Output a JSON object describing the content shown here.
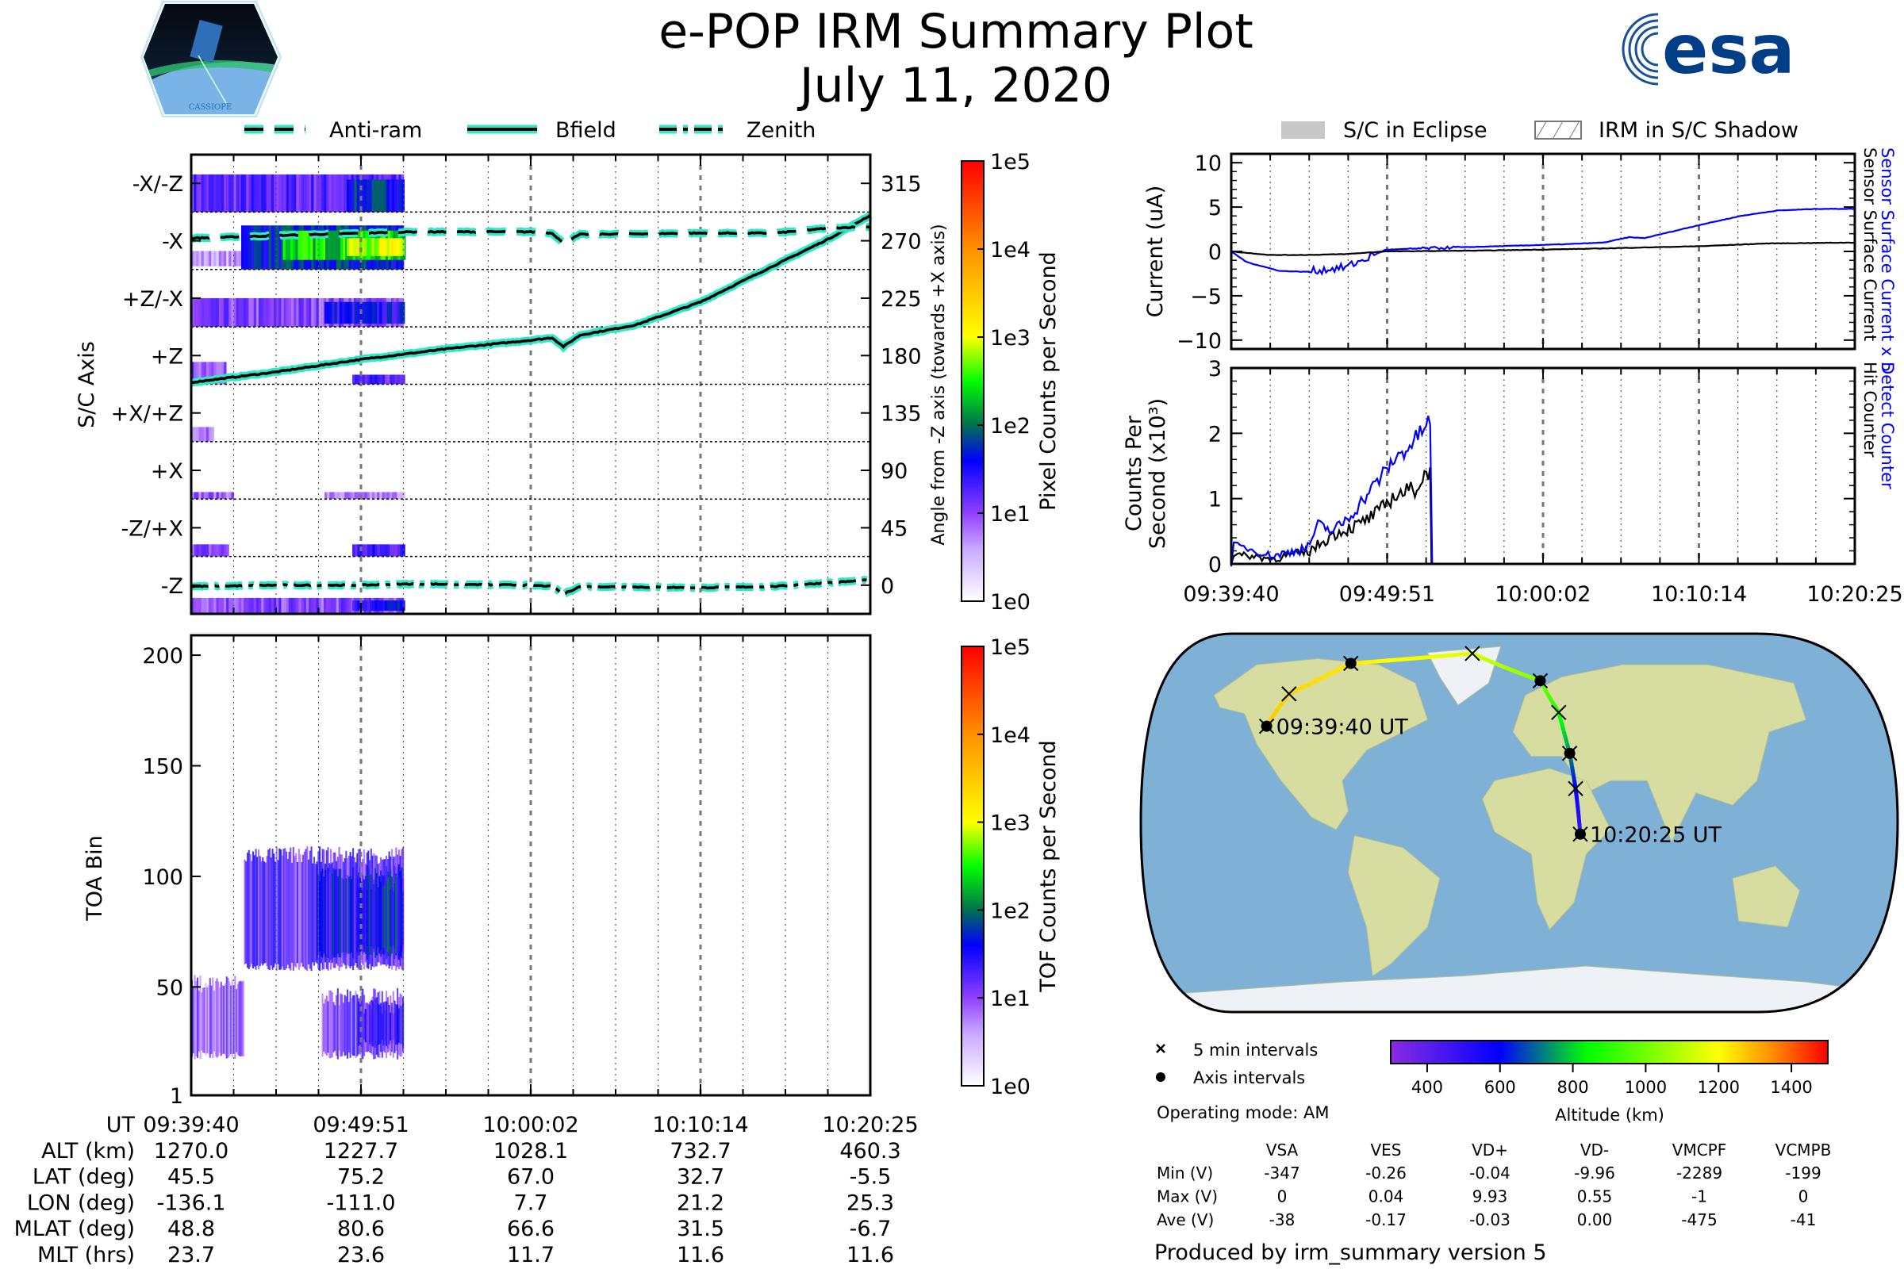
{
  "header": {
    "title": "e-POP IRM Summary Plot",
    "date": "July 11, 2020",
    "left_logo_text": "CASSIOPE",
    "right_logo_text": "esa"
  },
  "legend_left": {
    "antiram": "Anti-ram",
    "bfield": "Bfield",
    "zenith": "Zenith"
  },
  "legend_right": {
    "eclipse": "S/C in Eclipse",
    "shadow": "IRM in S/C Shadow"
  },
  "time_axis": {
    "labels": [
      "09:39:40",
      "09:49:51",
      "10:00:02",
      "10:10:14",
      "10:20:25"
    ],
    "seconds": [
      0,
      611,
      1222,
      1834,
      2445
    ],
    "range_s": [
      0,
      2445
    ],
    "minor_divisions": 16
  },
  "chart_data": [
    {
      "id": "pixel",
      "type": "heatmap",
      "ylabel": "S/C Axis",
      "y2label": "Angle from -Z axis (towards +X axis)",
      "categories": [
        "-X/-Z",
        "-X",
        "+Z/-X",
        "+Z",
        "+X/+Z",
        "+X",
        "-Z/+X",
        "-Z"
      ],
      "category_angles": [
        315,
        270,
        225,
        180,
        135,
        90,
        45,
        0
      ],
      "y2ticks": [
        "315",
        "270",
        "225",
        "180",
        "135",
        "90",
        "45",
        "0"
      ],
      "ylim": [
        -22.5,
        337.5
      ],
      "colorbar": {
        "label": "Pixel Counts per Second",
        "ticks": [
          "1e0",
          "1e1",
          "1e2",
          "1e3",
          "1e4",
          "1e5"
        ]
      },
      "blocks_log10": [
        {
          "a": [
            292.5,
            322
          ],
          "t": [
            0,
            765
          ],
          "v": 1.2
        },
        {
          "a": [
            292.5,
            318
          ],
          "t": [
            560,
            765
          ],
          "v": 1.7
        },
        {
          "a": [
            250,
            262
          ],
          "t": [
            0,
            180
          ],
          "v": 0.6
        },
        {
          "a": [
            247.5,
            282
          ],
          "t": [
            180,
            765
          ],
          "v": 1.7
        },
        {
          "a": [
            255,
            278
          ],
          "t": [
            330,
            765
          ],
          "v": 2.4
        },
        {
          "a": [
            258,
            272
          ],
          "t": [
            560,
            765
          ],
          "v": 2.9
        },
        {
          "a": [
            202.5,
            225
          ],
          "t": [
            0,
            765
          ],
          "v": 1.0
        },
        {
          "a": [
            205,
            222
          ],
          "t": [
            480,
            765
          ],
          "v": 1.5
        },
        {
          "a": [
            157.5,
            175
          ],
          "t": [
            0,
            120
          ],
          "v": 1.0
        },
        {
          "a": [
            157.5,
            165
          ],
          "t": [
            580,
            765
          ],
          "v": 1.2
        },
        {
          "a": [
            112.5,
            124
          ],
          "t": [
            0,
            80
          ],
          "v": 0.9
        },
        {
          "a": [
            67.5,
            73
          ],
          "t": [
            0,
            150
          ],
          "v": 0.9
        },
        {
          "a": [
            67.5,
            73
          ],
          "t": [
            480,
            765
          ],
          "v": 0.7
        },
        {
          "a": [
            22.5,
            32
          ],
          "t": [
            0,
            130
          ],
          "v": 1.0
        },
        {
          "a": [
            22.5,
            32
          ],
          "t": [
            580,
            765
          ],
          "v": 1.3
        },
        {
          "a": [
            -22.5,
            -10
          ],
          "t": [
            0,
            765
          ],
          "v": 1.0
        },
        {
          "a": [
            -20,
            -12
          ],
          "t": [
            580,
            765
          ],
          "v": 1.5
        }
      ],
      "series": [
        {
          "name": "Bfield",
          "t": [
            0,
            300,
            611,
            800,
            950,
            1222,
            1300,
            1340,
            1400,
            1600,
            1834,
            2000,
            2150,
            2300,
            2445
          ],
          "deg": [
            159,
            167,
            177,
            182,
            186,
            192,
            194,
            187,
            196,
            204,
            222,
            240,
            256,
            272,
            290
          ]
        },
        {
          "name": "Anti-ram",
          "t": [
            0,
            300,
            611,
            800,
            1222,
            1300,
            1340,
            1400,
            1834,
            2100,
            2300,
            2445
          ],
          "deg": [
            272,
            274,
            276,
            277,
            277,
            276,
            268,
            275,
            276,
            276,
            280,
            281
          ]
        },
        {
          "name": "Zenith",
          "t": [
            0,
            300,
            611,
            800,
            1222,
            1300,
            1340,
            1400,
            1834,
            2100,
            2300,
            2445
          ],
          "deg": [
            -1,
            0,
            0,
            1,
            0,
            -1,
            -7,
            -1,
            -2,
            -1,
            2,
            4
          ]
        }
      ]
    },
    {
      "id": "tof",
      "type": "heatmap",
      "ylabel": "TOA Bin",
      "yticks": [
        "1",
        "50",
        "100",
        "150",
        "200"
      ],
      "ylim": [
        1,
        209
      ],
      "colorbar": {
        "label": "TOF Counts per Second",
        "ticks": [
          "1e0",
          "1e1",
          "1e2",
          "1e3",
          "1e4",
          "1e5"
        ]
      },
      "blocks_log10": [
        {
          "toa": [
            20,
            50
          ],
          "t": [
            0,
            190
          ],
          "v": 0.9
        },
        {
          "toa": [
            60,
            108
          ],
          "t": [
            190,
            765
          ],
          "v": 1.2
        },
        {
          "toa": [
            65,
            100
          ],
          "t": [
            450,
            765
          ],
          "v": 1.5
        },
        {
          "toa": [
            68,
            95
          ],
          "t": [
            600,
            765
          ],
          "v": 1.7
        },
        {
          "toa": [
            20,
            44
          ],
          "t": [
            470,
            765
          ],
          "v": 1.1
        },
        {
          "toa": [
            25,
            40
          ],
          "t": [
            600,
            765
          ],
          "v": 1.4
        }
      ]
    },
    {
      "id": "current",
      "type": "line",
      "ylabel": "Current (uA)",
      "ylim": [
        -11,
        11
      ],
      "yticks": [
        "10",
        "5",
        "0",
        "−5",
        "−10"
      ],
      "ytick_values": [
        10,
        5,
        0,
        -5,
        -10
      ],
      "right_labels": {
        "blue": "Sensor Surface Current x 5",
        "black": "Sensor Surface Current"
      },
      "series": [
        {
          "name": "Sensor Surface Current x 5",
          "color": "#0000ff",
          "t": [
            0,
            60,
            190,
            290,
            380,
            447,
            530,
            606,
            944,
            1300,
            1461,
            1560,
            1620,
            1839,
            1998,
            2137,
            2296,
            2445
          ],
          "y": [
            0,
            -1.2,
            -2.2,
            -2.3,
            -2.0,
            -1.8,
            -0.8,
            0.2,
            0.5,
            0.8,
            1.0,
            1.6,
            1.5,
            3.0,
            4.0,
            4.6,
            4.8,
            4.8
          ]
        },
        {
          "name": "Sensor Surface Current",
          "color": "#000000",
          "t": [
            0,
            150,
            300,
            450,
            600,
            1000,
            1400,
            1850,
            2100,
            2445
          ],
          "y": [
            0,
            -0.4,
            -0.4,
            -0.3,
            0,
            0.1,
            0.3,
            0.6,
            0.9,
            1.0
          ]
        }
      ]
    },
    {
      "id": "counts",
      "type": "line",
      "ylabel": [
        "Counts Per",
        "Second (x10³)"
      ],
      "ylim": [
        0,
        3
      ],
      "yticks": [
        "3",
        "2",
        "1",
        "0"
      ],
      "ytick_values": [
        3,
        2,
        1,
        0
      ],
      "right_labels": {
        "blue": "Detect Counter",
        "black": "Hit Counter"
      },
      "series": [
        {
          "name": "Hit Counter",
          "color": "#000000",
          "t": [
            0,
            10,
            160,
            300,
            400,
            500,
            580,
            640,
            720,
            780,
            785,
            2445
          ],
          "y": [
            0,
            0.15,
            0.08,
            0.18,
            0.45,
            0.6,
            0.8,
            1.05,
            1.15,
            1.45,
            0,
            0
          ]
        },
        {
          "name": "Detect Counter",
          "color": "#0000ff",
          "t": [
            0,
            10,
            160,
            300,
            340,
            400,
            470,
            580,
            640,
            700,
            780,
            788,
            2445
          ],
          "y": [
            0,
            0.3,
            0.12,
            0.25,
            0.6,
            0.5,
            0.75,
            1.3,
            1.6,
            1.8,
            2.2,
            0,
            0
          ]
        }
      ]
    }
  ],
  "ephemeris": {
    "rows": [
      {
        "label": "UT",
        "values": [
          "09:39:40",
          "09:49:51",
          "10:00:02",
          "10:10:14",
          "10:20:25"
        ]
      },
      {
        "label": "ALT (km)",
        "values": [
          "1270.0",
          "1227.7",
          "1028.1",
          "732.7",
          "460.3"
        ]
      },
      {
        "label": "LAT (deg)",
        "values": [
          "45.5",
          "75.2",
          "67.0",
          "32.7",
          "-5.5"
        ]
      },
      {
        "label": "LON (deg)",
        "values": [
          "-136.1",
          "-111.0",
          "7.7",
          "21.2",
          "25.3"
        ]
      },
      {
        "label": "MLAT (deg)",
        "values": [
          "48.8",
          "80.6",
          "66.6",
          "31.5",
          "-6.7"
        ]
      },
      {
        "label": "MLT (hrs)",
        "values": [
          "23.7",
          "23.6",
          "11.7",
          "11.6",
          "11.6"
        ]
      }
    ]
  },
  "map": {
    "start_label": "09:39:40 UT",
    "end_label": "10:20:25 UT",
    "track": [
      {
        "lon": -136.1,
        "lat": 45.5,
        "alt": 1270,
        "x5": true,
        "axis": true
      },
      {
        "lon": -134.8,
        "lat": 60.8,
        "alt": 1255,
        "x5": true,
        "axis": false
      },
      {
        "lon": -111.0,
        "lat": 75.2,
        "alt": 1228,
        "x5": true,
        "axis": true
      },
      {
        "lon": -36.0,
        "lat": 79.9,
        "alt": 1150,
        "x5": true,
        "axis": false
      },
      {
        "lon": 7.7,
        "lat": 67.0,
        "alt": 1028,
        "x5": true,
        "axis": true
      },
      {
        "lon": 17.0,
        "lat": 52.0,
        "alt": 880,
        "x5": true,
        "axis": false
      },
      {
        "lon": 21.2,
        "lat": 32.7,
        "alt": 733,
        "x5": true,
        "axis": true
      },
      {
        "lon": 23.3,
        "lat": 16.0,
        "alt": 600,
        "x5": true,
        "axis": false
      },
      {
        "lon": 25.3,
        "lat": -5.5,
        "alt": 460,
        "x5": true,
        "axis": true
      }
    ],
    "legend": {
      "x5": "5 min intervals",
      "axis": "Axis intervals"
    },
    "altitude_colorbar": {
      "label": "Altitude (km)",
      "ticks": [
        "400",
        "600",
        "800",
        "1000",
        "1200",
        "1400"
      ],
      "tick_values": [
        400,
        600,
        800,
        1000,
        1200,
        1400
      ],
      "range": [
        300,
        1500
      ]
    },
    "operating_mode": "Operating mode: AM"
  },
  "voltages": {
    "columns": [
      "VSA",
      "VES",
      "VD+",
      "VD-",
      "VMCPF",
      "VCMPB"
    ],
    "rows": [
      {
        "label": "Min (V)",
        "values": [
          "-347",
          "-0.26",
          "-0.04",
          "-9.96",
          "-2289",
          "-199"
        ]
      },
      {
        "label": "Max (V)",
        "values": [
          "0",
          "0.04",
          "9.93",
          "0.55",
          "-1",
          "0"
        ]
      },
      {
        "label": "Ave (V)",
        "values": [
          "-38",
          "-0.17",
          "-0.03",
          "0.00",
          "-475",
          "-41"
        ]
      }
    ]
  },
  "footer": "Produced by irm_summary version 5",
  "colors": {
    "cyan": "#2ee8c8",
    "blue": "#0000ff",
    "esa_blue": "#003f87",
    "eclipse_gray": "#c8c8c8"
  }
}
